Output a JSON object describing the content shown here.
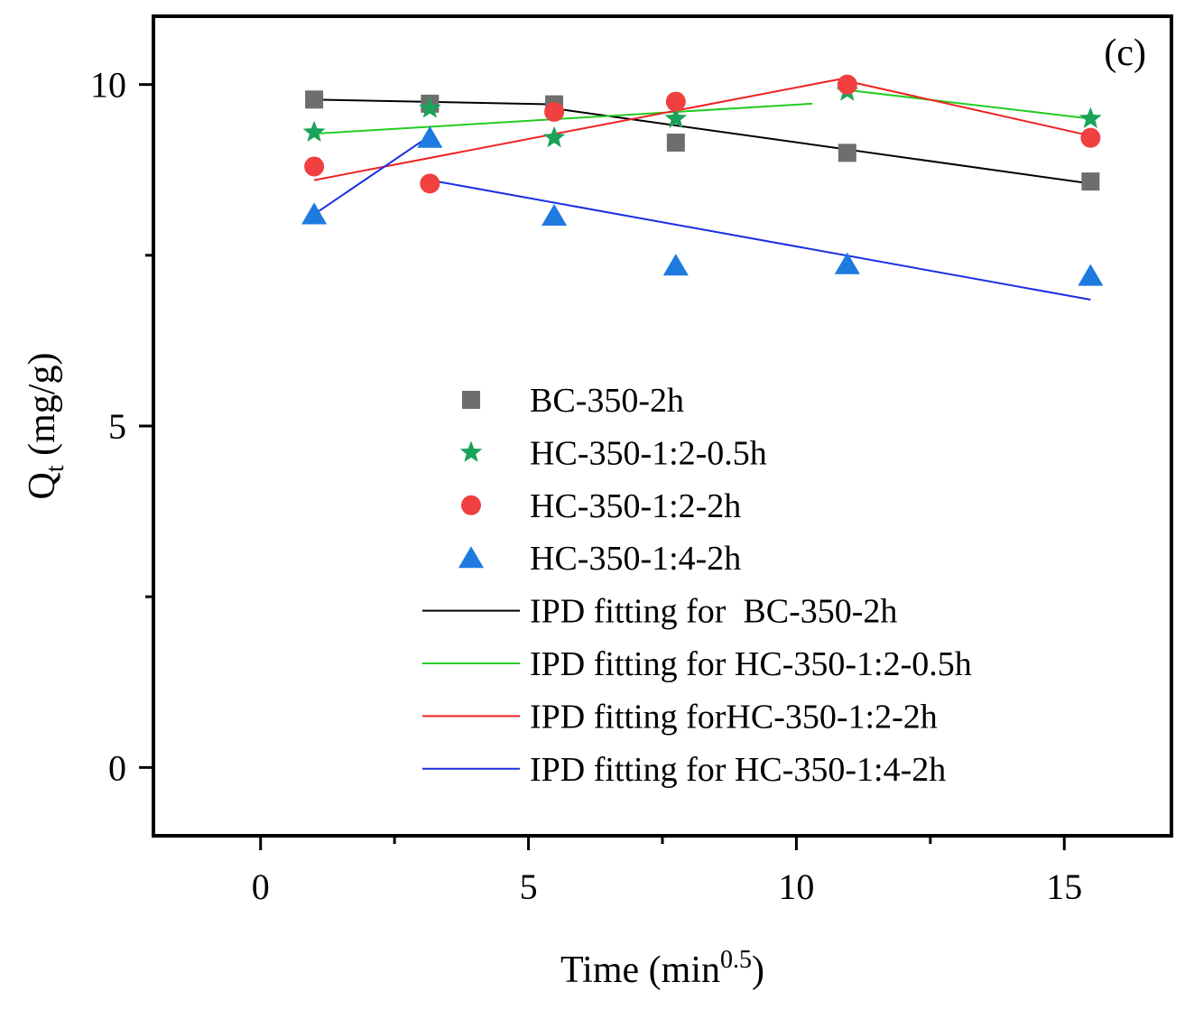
{
  "chart_data": {
    "type": "scatter",
    "panel_label": "(c)",
    "xlabel": {
      "base": "Time (min",
      "sup": "0.5",
      "tail": ")"
    },
    "ylabel": {
      "base": "Q",
      "sub": "t",
      "tail": " (mg/g)"
    },
    "xlim": [
      -2,
      17
    ],
    "ylim": [
      -1,
      11
    ],
    "xticks": [
      0,
      5,
      10,
      15
    ],
    "xtick_labels": [
      "0",
      "5",
      "10",
      "15"
    ],
    "xminor": [
      2.5,
      7.5,
      12.5
    ],
    "yticks": [
      0,
      5,
      10
    ],
    "ytick_labels": [
      "0",
      "5",
      "10"
    ],
    "yminor": [
      2.5,
      7.5
    ],
    "grid": false,
    "legend_position": "center",
    "series": [
      {
        "name": "BC-350-2h",
        "marker": "square",
        "color": "#6e6e6e",
        "x": [
          1.0,
          3.16,
          5.48,
          7.75,
          10.95,
          15.49
        ],
        "y": [
          9.78,
          9.72,
          9.71,
          9.15,
          9.0,
          8.58
        ]
      },
      {
        "name": "HC-350-1:2-0.5h",
        "marker": "star",
        "color": "#1aa35a",
        "x": [
          1.0,
          3.16,
          5.48,
          7.75,
          10.95,
          15.49
        ],
        "y": [
          9.3,
          9.65,
          9.22,
          9.5,
          9.9,
          9.5
        ]
      },
      {
        "name": "HC-350-1:2-2h",
        "marker": "circle",
        "color": "#f04040",
        "x": [
          1.0,
          3.16,
          5.48,
          7.75,
          10.95,
          15.49
        ],
        "y": [
          8.8,
          8.55,
          9.6,
          9.75,
          10.0,
          9.22
        ]
      },
      {
        "name": "HC-350-1:4-2h",
        "marker": "triangle",
        "color": "#1f7ae0",
        "x": [
          1.0,
          3.16,
          5.48,
          7.75,
          10.95,
          15.49
        ],
        "y": [
          8.1,
          9.22,
          8.08,
          7.35,
          7.37,
          7.2
        ]
      }
    ],
    "fits": [
      {
        "name": "IPD fitting for  BC-350-2h",
        "color": "#000000",
        "segments": [
          {
            "x": [
              1.0,
              5.48
            ],
            "y": [
              9.78,
              9.71
            ]
          },
          {
            "x": [
              5.48,
              15.49
            ],
            "y": [
              9.65,
              8.55
            ]
          }
        ]
      },
      {
        "name": "IPD fitting for HC-350-1:2-0.5h",
        "color": "#22cc22",
        "segments": [
          {
            "x": [
              1.0,
              10.3
            ],
            "y": [
              9.28,
              9.72
            ]
          },
          {
            "x": [
              10.95,
              15.49
            ],
            "y": [
              9.92,
              9.5
            ]
          }
        ]
      },
      {
        "name": "IPD fitting forHC-350-1:2-2h",
        "color": "#ee2222",
        "segments": [
          {
            "x": [
              1.0,
              10.95
            ],
            "y": [
              8.6,
              10.1
            ]
          },
          {
            "x": [
              10.95,
              15.49
            ],
            "y": [
              10.05,
              9.25
            ]
          }
        ]
      },
      {
        "name": "IPD fitting for HC-350-1:4-2h",
        "color": "#1a2ee0",
        "segments": [
          {
            "x": [
              1.0,
              3.16
            ],
            "y": [
              8.1,
              9.25
            ]
          },
          {
            "x": [
              3.16,
              15.49
            ],
            "y": [
              8.6,
              6.85
            ]
          }
        ]
      }
    ]
  }
}
